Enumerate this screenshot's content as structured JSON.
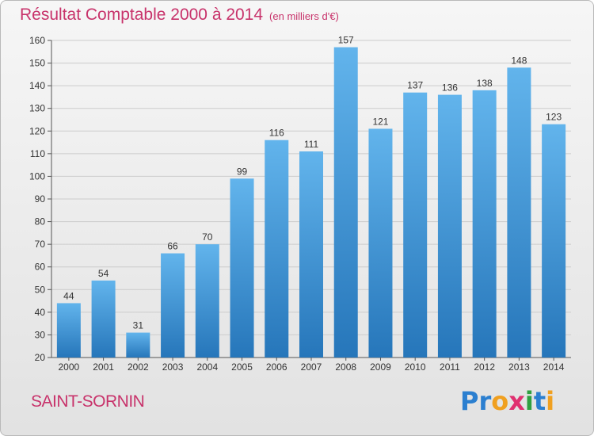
{
  "header": {
    "title": "Résultat Comptable 2000 à 2014",
    "subtitle": "(en milliers d'€)"
  },
  "footer": {
    "commune": "SAINT-SORNIN",
    "logo_letters": [
      {
        "ch": "P",
        "color": "#2b7fd0"
      },
      {
        "ch": "r",
        "color": "#2b7fd0"
      },
      {
        "ch": "o",
        "color": "#f0a020"
      },
      {
        "ch": "x",
        "color": "#e03070"
      },
      {
        "ch": "i",
        "color": "#30a040"
      },
      {
        "ch": "t",
        "color": "#2b7fd0"
      },
      {
        "ch": "i",
        "color": "#f0a020"
      }
    ]
  },
  "chart_data": {
    "type": "bar",
    "categories": [
      "2000",
      "2001",
      "2002",
      "2003",
      "2004",
      "2005",
      "2006",
      "2007",
      "2008",
      "2009",
      "2010",
      "2011",
      "2012",
      "2013",
      "2014"
    ],
    "values": [
      44,
      54,
      31,
      66,
      70,
      99,
      116,
      111,
      157,
      121,
      137,
      136,
      138,
      148,
      123
    ],
    "ylim": [
      20,
      160
    ],
    "yticks": [
      20,
      30,
      40,
      50,
      60,
      70,
      80,
      90,
      100,
      110,
      120,
      130,
      140,
      150,
      160
    ],
    "grid": true,
    "colors": {
      "bar_light": "#62b4ec",
      "bar_dark": "#2676ba",
      "grid": "#cccccc"
    }
  }
}
